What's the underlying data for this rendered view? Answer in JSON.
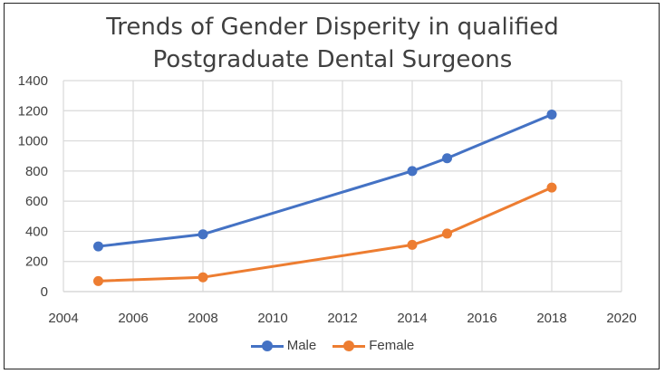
{
  "chart_data": {
    "type": "line",
    "title_lines": [
      "Trends of Gender Disperity in qualified",
      "Postgraduate Dental Surgeons"
    ],
    "xlabel": "",
    "ylabel": "",
    "xlim": [
      2004,
      2020
    ],
    "ylim": [
      0,
      1400
    ],
    "x_ticks": [
      2004,
      2006,
      2008,
      2010,
      2012,
      2014,
      2016,
      2018,
      2020
    ],
    "y_ticks": [
      0,
      200,
      400,
      600,
      800,
      1000,
      1200,
      1400
    ],
    "grid": true,
    "legend_position": "bottom",
    "x": [
      2005,
      2008,
      2014,
      2015,
      2018
    ],
    "series": [
      {
        "name": "Male",
        "color": "#4472C4",
        "values": [
          300,
          380,
          800,
          885,
          1175
        ]
      },
      {
        "name": "Female",
        "color": "#ED7D31",
        "values": [
          70,
          95,
          310,
          385,
          690
        ]
      }
    ]
  }
}
